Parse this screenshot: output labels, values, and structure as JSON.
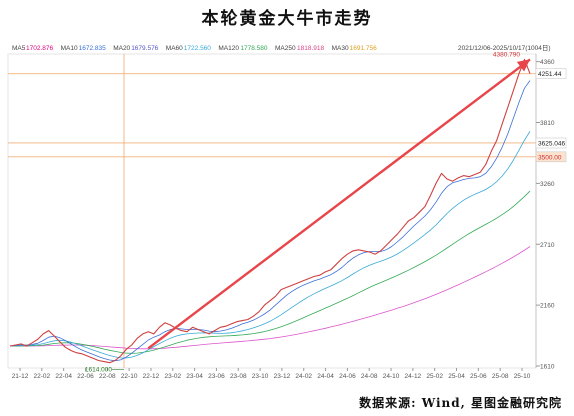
{
  "title": "本轮黄金大牛市走势",
  "source": "数据来源: Wind, 星图金融研究院",
  "chart_data": {
    "type": "line",
    "header": {
      "range_text": "2021/12/06-2025/10/17(1004日)",
      "ma": [
        {
          "name": "MA5",
          "value": "1702.876",
          "color": "#e6007e"
        },
        {
          "name": "MA10",
          "value": "1672.835",
          "color": "#3a6fd8"
        },
        {
          "name": "MA20",
          "value": "1679.576",
          "color": "#5555cc"
        },
        {
          "name": "MA60",
          "value": "1722.560",
          "color": "#39a9d6"
        },
        {
          "name": "MA120",
          "value": "1778.580",
          "color": "#33aa55"
        },
        {
          "name": "MA250",
          "value": "1818.918",
          "color": "#dd4488"
        },
        {
          "name": "MA30",
          "value": "1691.756",
          "color": "#e0a020"
        }
      ]
    },
    "x_ticks": [
      "21-12",
      "22-02",
      "22-04",
      "22-06",
      "22-08",
      "22-10",
      "22-12",
      "23-02",
      "23-04",
      "23-06",
      "23-08",
      "23-10",
      "23-12",
      "24-02",
      "24-04",
      "24-06",
      "24-08",
      "24-10",
      "24-12",
      "25-02",
      "25-04",
      "25-06",
      "25-08",
      "25-10"
    ],
    "y_ticks": [
      1610,
      2160,
      2710,
      3260,
      3810,
      4360
    ],
    "ylim": [
      1610,
      4420
    ],
    "series": [
      {
        "values": [
          1790,
          1800,
          1810,
          1790,
          1820,
          1850,
          1900,
          1930,
          1880,
          1830,
          1780,
          1750,
          1730,
          1720,
          1700,
          1680,
          1660,
          1650,
          1640,
          1660,
          1700,
          1760,
          1800,
          1860,
          1900,
          1920,
          1900,
          1960,
          2000,
          1980,
          1950,
          1930,
          1920,
          1960,
          1940,
          1920,
          1900,
          1930,
          1960,
          1970,
          1990,
          2010,
          2020,
          2030,
          2060,
          2100,
          2160,
          2200,
          2240,
          2300,
          2320,
          2340,
          2360,
          2380,
          2400,
          2420,
          2430,
          2460,
          2480,
          2530,
          2580,
          2620,
          2650,
          2660,
          2650,
          2640,
          2620,
          2650,
          2700,
          2750,
          2800,
          2860,
          2920,
          2950,
          3000,
          3050,
          3150,
          3260,
          3350,
          3300,
          3280,
          3310,
          3330,
          3320,
          3340,
          3360,
          3430,
          3550,
          3650,
          3800,
          3950,
          4100,
          4250,
          4380,
          4251
        ],
        "color": "#d04040"
      },
      {
        "values": [
          1790,
          1795,
          1800,
          1800,
          1805,
          1815,
          1840,
          1870,
          1880,
          1865,
          1840,
          1810,
          1780,
          1755,
          1735,
          1715,
          1695,
          1678,
          1664,
          1658,
          1665,
          1690,
          1725,
          1765,
          1805,
          1845,
          1870,
          1890,
          1920,
          1940,
          1950,
          1945,
          1940,
          1940,
          1940,
          1935,
          1925,
          1920,
          1925,
          1935,
          1950,
          1970,
          1990,
          2005,
          2025,
          2050,
          2080,
          2115,
          2160,
          2205,
          2250,
          2285,
          2315,
          2340,
          2360,
          2380,
          2395,
          2415,
          2435,
          2465,
          2500,
          2545,
          2585,
          2615,
          2635,
          2645,
          2645,
          2645,
          2660,
          2690,
          2730,
          2775,
          2825,
          2875,
          2920,
          2965,
          3020,
          3090,
          3170,
          3230,
          3265,
          3280,
          3295,
          3305,
          3310,
          3320,
          3350,
          3410,
          3490,
          3590,
          3710,
          3850,
          3990,
          4120,
          4190
        ],
        "color": "#3a6fd8"
      },
      {
        "values": [
          1790,
          1792,
          1795,
          1796,
          1798,
          1803,
          1812,
          1826,
          1838,
          1842,
          1838,
          1826,
          1810,
          1792,
          1773,
          1755,
          1737,
          1720,
          1705,
          1692,
          1683,
          1682,
          1690,
          1706,
          1728,
          1756,
          1785,
          1812,
          1838,
          1861,
          1880,
          1893,
          1900,
          1905,
          1908,
          1909,
          1908,
          1906,
          1905,
          1906,
          1910,
          1918,
          1928,
          1940,
          1954,
          1971,
          1991,
          2014,
          2042,
          2073,
          2106,
          2140,
          2174,
          2206,
          2236,
          2263,
          2288,
          2311,
          2333,
          2356,
          2381,
          2410,
          2441,
          2471,
          2498,
          2521,
          2540,
          2556,
          2574,
          2596,
          2622,
          2652,
          2686,
          2722,
          2759,
          2797,
          2838,
          2884,
          2936,
          2988,
          3034,
          3073,
          3108,
          3137,
          3161,
          3182,
          3205,
          3236,
          3276,
          3328,
          3392,
          3470,
          3559,
          3651,
          3730
        ],
        "color": "#39a9d6"
      },
      {
        "values": [
          1790,
          1790,
          1791,
          1792,
          1793,
          1795,
          1799,
          1806,
          1813,
          1818,
          1820,
          1819,
          1814,
          1806,
          1797,
          1786,
          1775,
          1763,
          1752,
          1742,
          1733,
          1727,
          1725,
          1727,
          1733,
          1742,
          1754,
          1768,
          1783,
          1799,
          1815,
          1830,
          1843,
          1853,
          1862,
          1869,
          1874,
          1877,
          1880,
          1882,
          1884,
          1887,
          1891,
          1896,
          1903,
          1911,
          1921,
          1934,
          1948,
          1964,
          1982,
          2002,
          2023,
          2045,
          2067,
          2089,
          2111,
          2133,
          2155,
          2177,
          2199,
          2222,
          2246,
          2271,
          2296,
          2320,
          2343,
          2364,
          2385,
          2406,
          2428,
          2451,
          2475,
          2500,
          2526,
          2553,
          2581,
          2611,
          2643,
          2676,
          2710,
          2743,
          2775,
          2806,
          2835,
          2862,
          2889,
          2917,
          2946,
          2978,
          3013,
          3052,
          3095,
          3142,
          3190
        ],
        "color": "#33aa55"
      },
      {
        "values": [
          1790,
          1790,
          1790,
          1790,
          1791,
          1791,
          1792,
          1794,
          1796,
          1798,
          1799,
          1800,
          1800,
          1799,
          1797,
          1794,
          1791,
          1787,
          1783,
          1779,
          1775,
          1771,
          1768,
          1766,
          1765,
          1765,
          1766,
          1768,
          1771,
          1775,
          1779,
          1784,
          1789,
          1794,
          1799,
          1804,
          1809,
          1813,
          1817,
          1821,
          1825,
          1829,
          1833,
          1837,
          1842,
          1847,
          1852,
          1858,
          1865,
          1872,
          1880,
          1889,
          1898,
          1908,
          1918,
          1929,
          1940,
          1951,
          1963,
          1975,
          1987,
          2000,
          2013,
          2027,
          2041,
          2055,
          2070,
          2085,
          2100,
          2115,
          2131,
          2147,
          2164,
          2181,
          2199,
          2218,
          2237,
          2257,
          2278,
          2299,
          2321,
          2343,
          2366,
          2389,
          2413,
          2437,
          2461,
          2486,
          2512,
          2539,
          2567,
          2596,
          2626,
          2657,
          2690
        ],
        "color": "#dd55cc"
      }
    ],
    "price_labels": [
      {
        "text": "4380.790",
        "value": 4380.79,
        "color": "#d03030"
      },
      {
        "text": "4251.44",
        "value": 4251.44,
        "color": "#222222"
      },
      {
        "text": "3625.046",
        "value": 3625.046,
        "color": "#222222"
      },
      {
        "text": "3500.00",
        "value": 3500.0,
        "color": "#d03030"
      },
      {
        "text": "1614.000",
        "value": 1614.0,
        "color": "#2a7a2a"
      }
    ],
    "hlines": [
      4251.44,
      3625.046,
      3500.0
    ],
    "arrow": {
      "from_index": 25,
      "from_value": 1770,
      "to_index": 94,
      "to_value": 4380
    }
  }
}
